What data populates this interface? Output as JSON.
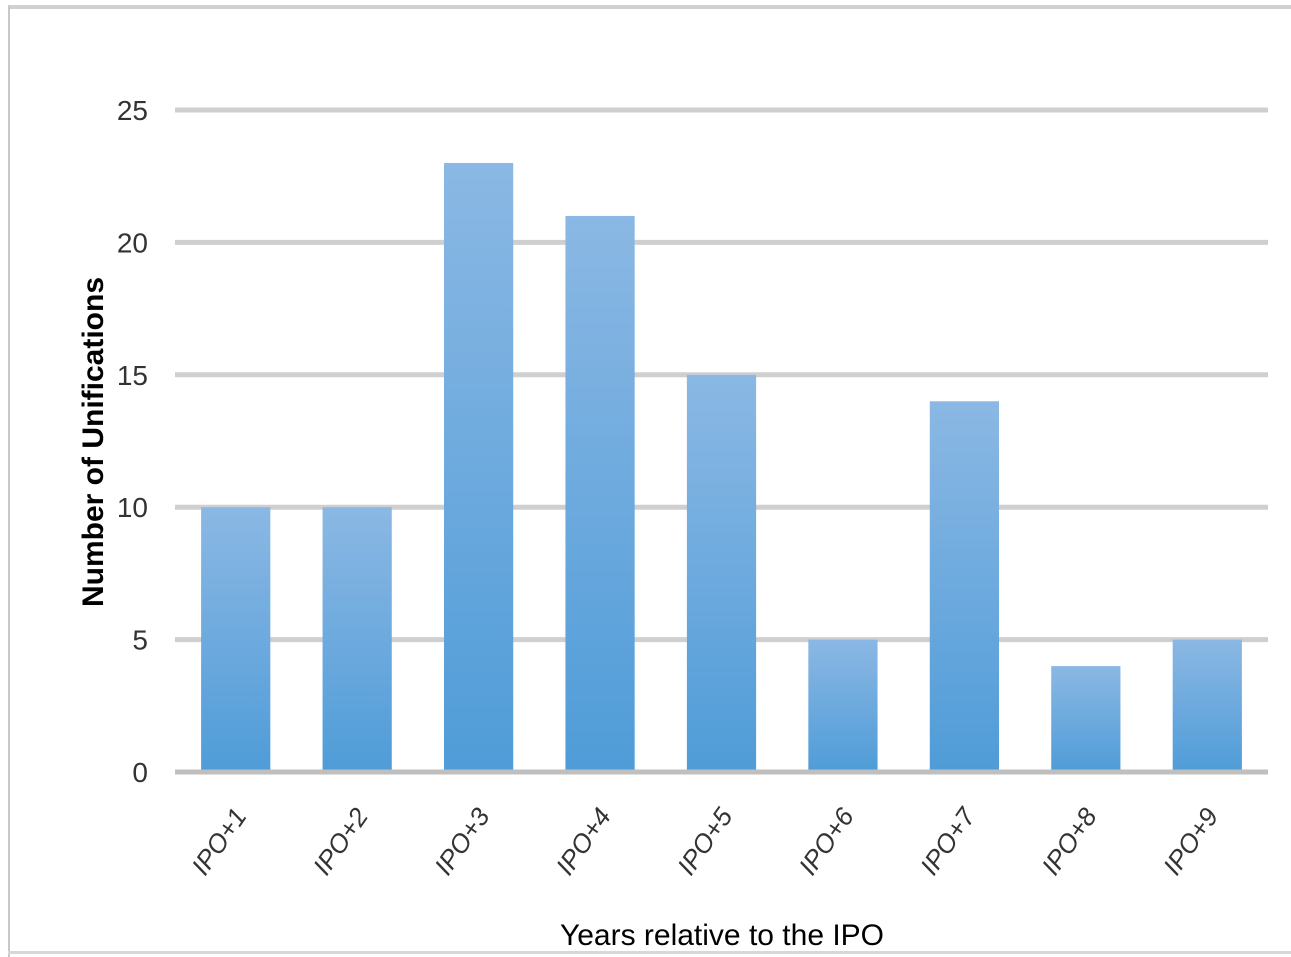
{
  "chart_data": {
    "type": "bar",
    "title": "",
    "xlabel": "Years relative to the IPO",
    "ylabel": "Number of Unifications",
    "categories": [
      "IPO+1",
      "IPO+2",
      "IPO+3",
      "IPO+4",
      "IPO+5",
      "IPO+6",
      "IPO+7",
      "IPO+8",
      "IPO+9"
    ],
    "values": [
      10,
      10,
      23,
      21,
      15,
      5,
      14,
      4,
      5
    ],
    "ylim": [
      0,
      25
    ],
    "yticks": [
      "0",
      "5",
      "10",
      "15",
      "20",
      "25"
    ],
    "grid": true,
    "legend": "none",
    "colors": {
      "bar_top": "#8bb8e4",
      "bar_bottom": "#4f9cd8",
      "grid": "#cfcfcf",
      "axis": "#bfbfbf"
    }
  }
}
